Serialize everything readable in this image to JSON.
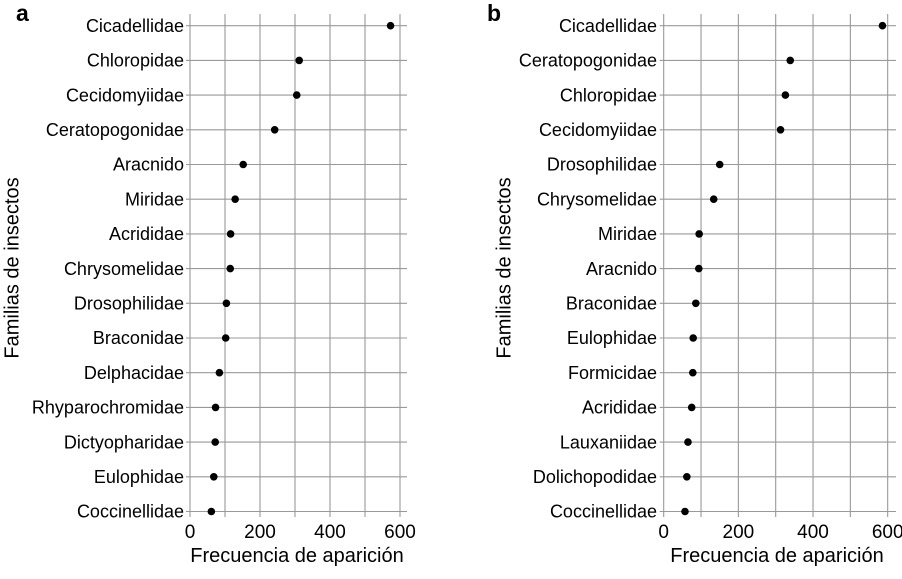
{
  "figure": {
    "background": "#ffffff",
    "grid_color": "#999999",
    "dot_color": "#000000",
    "text_color": "#000000"
  },
  "chart_data": [
    {
      "type": "scatter",
      "variant": "cleveland-dot-plot",
      "panel": "a",
      "panel_letter": "a",
      "title": "",
      "xlabel": "Frecuencia de aparición",
      "ylabel": "Familias de insectos",
      "xlim": [
        0,
        600
      ],
      "x_ticks": [
        0,
        200,
        400,
        600
      ],
      "x_gridline_step": 100,
      "grid": true,
      "legend": false,
      "categories": [
        "Cicadellidae",
        "Chloropidae",
        "Cecidomyiidae",
        "Ceratopogonidae",
        "Aracnido",
        "Miridae",
        "Acrididae",
        "Chrysomelidae",
        "Drosophilidae",
        "Braconidae",
        "Delphacidae",
        "Rhyparochromidae",
        "Dictyopharidae",
        "Eulophidae",
        "Coccinellidae"
      ],
      "values": [
        573,
        312,
        305,
        242,
        152,
        129,
        116,
        115,
        104,
        102,
        84,
        73,
        72,
        68,
        61
      ]
    },
    {
      "type": "scatter",
      "variant": "cleveland-dot-plot",
      "panel": "b",
      "panel_letter": "b",
      "title": "",
      "xlabel": "Frecuencia de aparición",
      "ylabel": "Familias de insectos",
      "xlim": [
        0,
        600
      ],
      "x_ticks": [
        0,
        200,
        400,
        600
      ],
      "x_gridline_step": 100,
      "grid": true,
      "legend": false,
      "categories": [
        "Cicadellidae",
        "Ceratopogonidae",
        "Chloropidae",
        "Cecidomyiidae",
        "Drosophilidae",
        "Chrysomelidae",
        "Miridae",
        "Aracnido",
        "Braconidae",
        "Eulophidae",
        "Formicidae",
        "Acrididae",
        "Lauxaniidae",
        "Dolichopodidae",
        "Coccinellidae"
      ],
      "values": [
        586,
        339,
        326,
        313,
        150,
        134,
        95,
        94,
        86,
        79,
        78,
        75,
        65,
        62,
        57
      ]
    }
  ]
}
